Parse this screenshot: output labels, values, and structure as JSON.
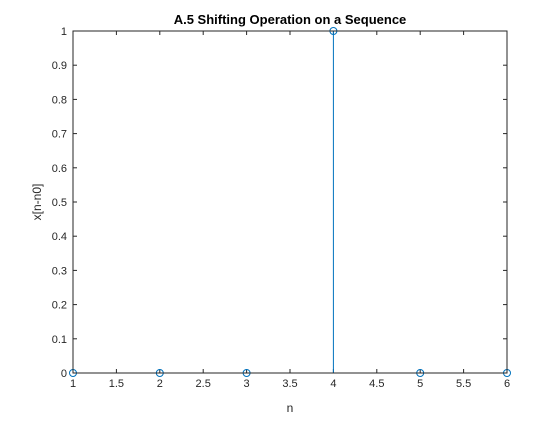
{
  "chart_data": {
    "type": "stem",
    "title": "A.5 Shifting Operation on a Sequence",
    "xlabel": "n",
    "ylabel": "x[n-n0]",
    "xlim": [
      1,
      6
    ],
    "ylim": [
      0,
      1
    ],
    "xticks": [
      "1",
      "1.5",
      "2",
      "2.5",
      "3",
      "3.5",
      "4",
      "4.5",
      "5",
      "5.5",
      "6"
    ],
    "yticks": [
      "0",
      "0.1",
      "0.2",
      "0.3",
      "0.4",
      "0.5",
      "0.6",
      "0.7",
      "0.8",
      "0.9",
      "1"
    ],
    "x": [
      1,
      2,
      3,
      4,
      5,
      6
    ],
    "values": [
      0,
      0,
      0,
      1,
      0,
      0
    ],
    "grid": false,
    "colors": {
      "series": "#0072bd",
      "axis": "#262626"
    }
  }
}
